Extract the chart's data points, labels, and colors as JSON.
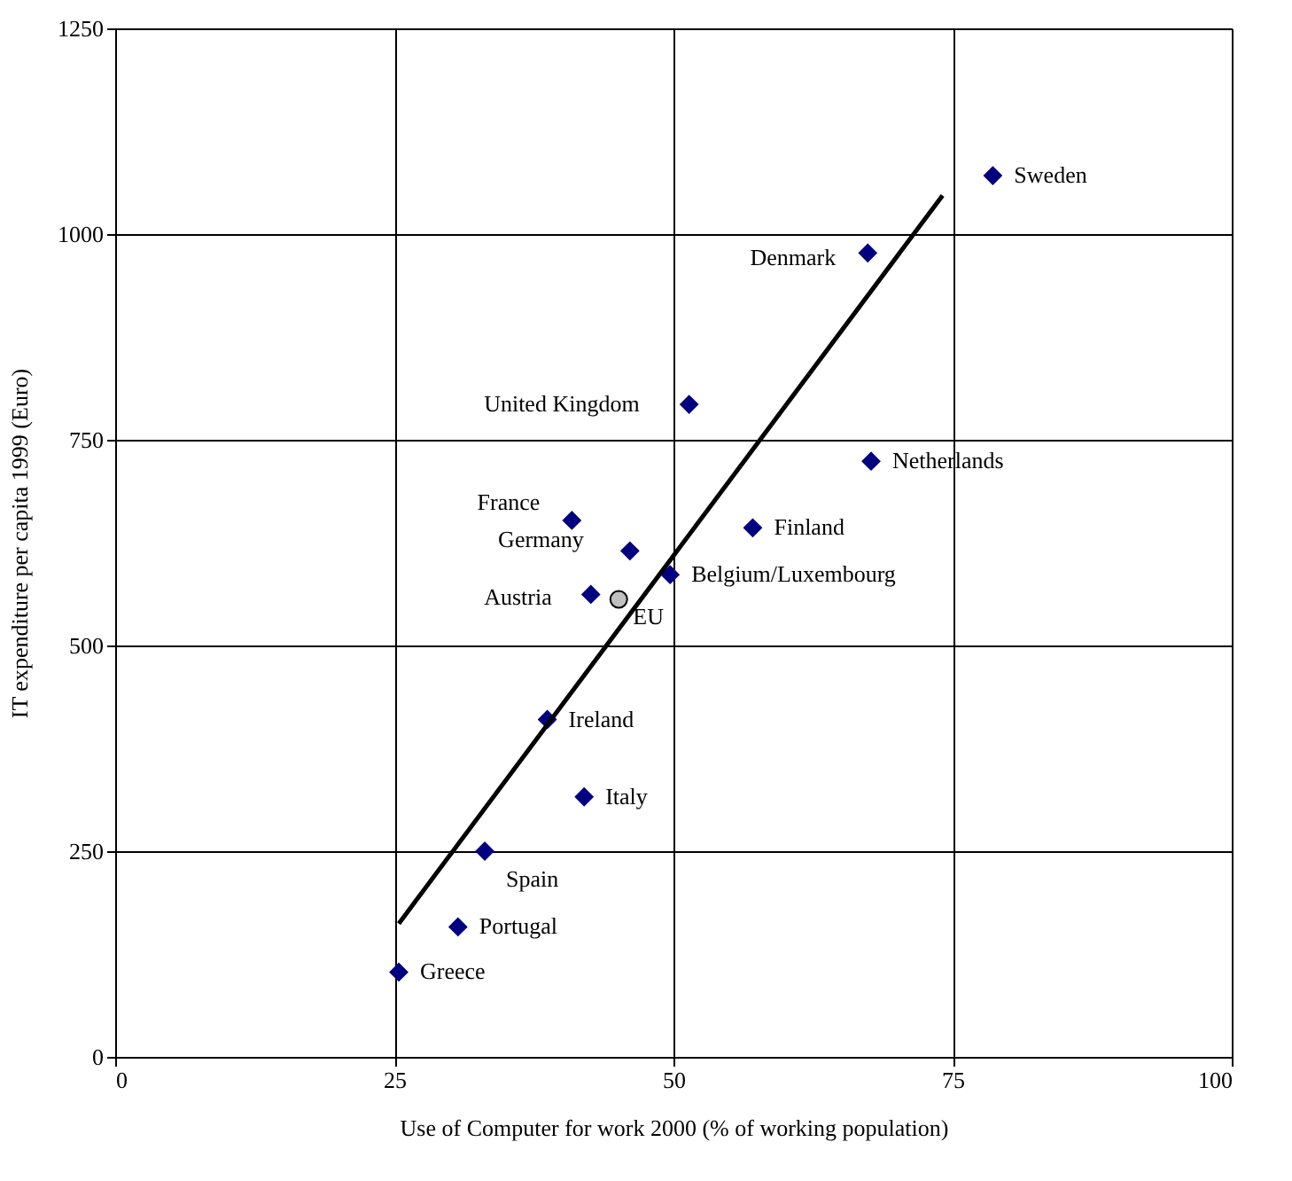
{
  "chart_data": {
    "type": "scatter",
    "xlabel": "Use of Computer for work 2000 (% of working population)",
    "ylabel": "IT expenditure per capita 1999 (Euro)",
    "xlim": [
      0,
      100
    ],
    "xticks": [
      0,
      25,
      50,
      75,
      100
    ],
    "ylim": [
      0,
      1250
    ],
    "yticks": [
      0,
      250,
      500,
      750,
      1000,
      1250
    ],
    "grid": true,
    "series": [
      {
        "type": "scatter",
        "marker": "diamond",
        "color": "#000080",
        "x": [
          78.6,
          67.4,
          51.4,
          67.7,
          40.9,
          57.1,
          46.1,
          49.7,
          42.6,
          38.7,
          42.0,
          33.1,
          30.7,
          25.4
        ],
        "values": [
          1071,
          977,
          793,
          724,
          652,
          643,
          615,
          586,
          562,
          410,
          316,
          250,
          158,
          103
        ]
      },
      {
        "type": "scatter",
        "marker": "circle",
        "color": "#c0c0c0",
        "x": [
          45.1
        ],
        "values": [
          556
        ]
      },
      {
        "type": "line",
        "marker": "none",
        "line_style": "solid",
        "color": "#000000",
        "x": [
          25.4,
          74.1
        ],
        "values": [
          162,
          1047
        ]
      }
    ],
    "annotations": [
      {
        "text": "Sweden",
        "x": 78.6,
        "y": 1071
      },
      {
        "text": "Denmark",
        "x": 67.4,
        "y": 977
      },
      {
        "text": "United Kingdom",
        "x": 51.4,
        "y": 793
      },
      {
        "text": "Netherlands",
        "x": 67.7,
        "y": 724
      },
      {
        "text": "France",
        "x": 40.9,
        "y": 652
      },
      {
        "text": "Finland",
        "x": 57.1,
        "y": 643
      },
      {
        "text": "Germany",
        "x": 46.1,
        "y": 615
      },
      {
        "text": "Belgium/Luxembourg",
        "x": 49.7,
        "y": 586
      },
      {
        "text": "Austria",
        "x": 42.6,
        "y": 562
      },
      {
        "text": "EU",
        "x": 45.1,
        "y": 556
      },
      {
        "text": "Ireland",
        "x": 38.7,
        "y": 410
      },
      {
        "text": "Italy",
        "x": 42.0,
        "y": 316
      },
      {
        "text": "Spain",
        "x": 33.1,
        "y": 250
      },
      {
        "text": "Portugal",
        "x": 30.7,
        "y": 158
      },
      {
        "text": "Greece",
        "x": 25.4,
        "y": 103
      }
    ]
  }
}
